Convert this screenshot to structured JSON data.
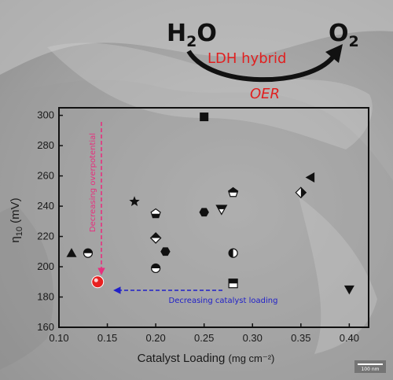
{
  "scheme": {
    "reactant": "H",
    "reactant_sub": "2",
    "reactant_tail": "O",
    "product": "O",
    "product_sub": "2",
    "arrow_label": "LDH hybrid",
    "reaction_label": "OER"
  },
  "colors": {
    "scheme_red": "#e02020",
    "decreasing_overpotential": "#e6307e",
    "decreasing_loading": "#2020c8",
    "highlight_point": "#e82020",
    "markers": "#111111"
  },
  "annotations": {
    "vertical": "Decreasing overpotential",
    "horizontal": "Decreasing catalyst loading"
  },
  "scale_bar": {
    "label": "100 nm"
  },
  "chart_data": {
    "type": "scatter",
    "xlabel": "Catalyst Loading",
    "xlabel_unit": "(mg cm⁻²)",
    "ylabel_main": "η",
    "ylabel_sub": "10",
    "ylabel_unit": " (mV)",
    "xlim": [
      0.1,
      0.42
    ],
    "ylim": [
      160,
      305
    ],
    "xticks": [
      "0.10",
      "0.15",
      "0.20",
      "0.25",
      "0.30",
      "0.35",
      "0.40"
    ],
    "yticks": [
      "160",
      "180",
      "200",
      "220",
      "240",
      "260",
      "280",
      "300"
    ],
    "grid": false,
    "points": [
      {
        "x": 0.113,
        "y": 209,
        "marker": "triangle-up"
      },
      {
        "x": 0.13,
        "y": 209,
        "marker": "circle-top-half"
      },
      {
        "x": 0.14,
        "y": 190,
        "marker": "highlight"
      },
      {
        "x": 0.178,
        "y": 243,
        "marker": "star"
      },
      {
        "x": 0.2,
        "y": 235,
        "marker": "pentagon-bottom-half"
      },
      {
        "x": 0.2,
        "y": 219,
        "marker": "diamond-top-half"
      },
      {
        "x": 0.2,
        "y": 199,
        "marker": "circle-top-half"
      },
      {
        "x": 0.21,
        "y": 210,
        "marker": "hexagon"
      },
      {
        "x": 0.25,
        "y": 299,
        "marker": "square"
      },
      {
        "x": 0.25,
        "y": 236,
        "marker": "hexagon"
      },
      {
        "x": 0.268,
        "y": 238,
        "marker": "triangle-down-half"
      },
      {
        "x": 0.28,
        "y": 249,
        "marker": "pentagon-top-half"
      },
      {
        "x": 0.28,
        "y": 209,
        "marker": "circle-left-half"
      },
      {
        "x": 0.28,
        "y": 189,
        "marker": "square-top-half"
      },
      {
        "x": 0.35,
        "y": 249,
        "marker": "diamond-right-half"
      },
      {
        "x": 0.36,
        "y": 259,
        "marker": "triangle-left"
      },
      {
        "x": 0.4,
        "y": 185,
        "marker": "triangle-down"
      }
    ]
  }
}
